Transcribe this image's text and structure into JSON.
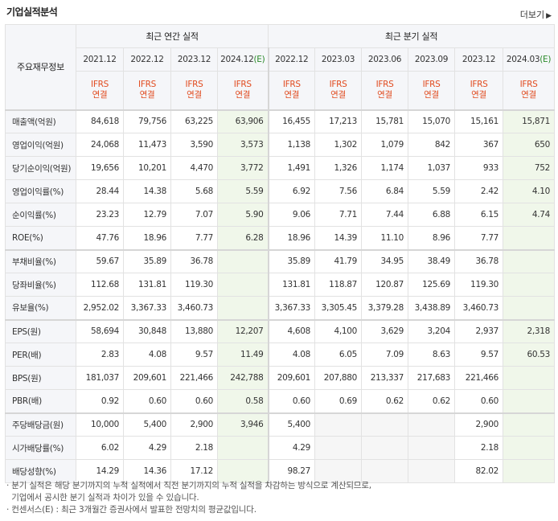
{
  "header": {
    "title": "기업실적분석",
    "more_label": "더보기",
    "more_arrow": "▶"
  },
  "table": {
    "corner_label": "주요재무정보",
    "annual_group": "최근 연간 실적",
    "quarter_group": "최근 분기 실적",
    "annual_periods": [
      "2021.12",
      "2022.12",
      "2023.12",
      "2024.12"
    ],
    "annual_est_suffix": "(E)",
    "quarter_periods": [
      "2022.12",
      "2023.03",
      "2023.06",
      "2023.09",
      "2023.12",
      "2024.03"
    ],
    "quarter_est_suffix": "(E)",
    "ifrs_top": "IFRS",
    "ifrs_bottom": "연결",
    "rows": [
      {
        "label": "매출액(억원)",
        "values": [
          "84,618",
          "79,756",
          "63,225",
          "63,906",
          "16,455",
          "17,213",
          "15,781",
          "15,070",
          "15,161",
          "15,871"
        ]
      },
      {
        "label": "영업이익(억원)",
        "values": [
          "24,068",
          "11,473",
          "3,590",
          "3,573",
          "1,138",
          "1,302",
          "1,079",
          "842",
          "367",
          "650"
        ]
      },
      {
        "label": "당기순이익(억원)",
        "values": [
          "19,656",
          "10,201",
          "4,470",
          "3,772",
          "1,491",
          "1,326",
          "1,174",
          "1,037",
          "933",
          "752"
        ]
      },
      {
        "label": "영업이익률(%)",
        "values": [
          "28.44",
          "14.38",
          "5.68",
          "5.59",
          "6.92",
          "7.56",
          "6.84",
          "5.59",
          "2.42",
          "4.10"
        ]
      },
      {
        "label": "순이익률(%)",
        "values": [
          "23.23",
          "12.79",
          "7.07",
          "5.90",
          "9.06",
          "7.71",
          "7.44",
          "6.88",
          "6.15",
          "4.74"
        ]
      },
      {
        "label": "ROE(%)",
        "values": [
          "47.76",
          "18.96",
          "7.77",
          "6.28",
          "18.96",
          "14.39",
          "11.10",
          "8.96",
          "7.77",
          ""
        ]
      },
      {
        "label": "부채비율(%)",
        "values": [
          "59.67",
          "35.89",
          "36.78",
          "",
          "35.89",
          "41.79",
          "34.95",
          "38.49",
          "36.78",
          ""
        ]
      },
      {
        "label": "당좌비율(%)",
        "values": [
          "112.68",
          "131.81",
          "119.30",
          "",
          "131.81",
          "118.87",
          "120.87",
          "125.69",
          "119.30",
          ""
        ]
      },
      {
        "label": "유보율(%)",
        "values": [
          "2,952.02",
          "3,367.33",
          "3,460.73",
          "",
          "3,367.33",
          "3,305.45",
          "3,379.28",
          "3,438.89",
          "3,460.73",
          ""
        ]
      },
      {
        "label": "EPS(원)",
        "values": [
          "58,694",
          "30,848",
          "13,880",
          "12,207",
          "4,608",
          "4,100",
          "3,629",
          "3,204",
          "2,937",
          "2,318"
        ]
      },
      {
        "label": "PER(배)",
        "values": [
          "2.83",
          "4.08",
          "9.57",
          "11.49",
          "4.08",
          "6.05",
          "7.09",
          "8.63",
          "9.57",
          "60.53"
        ]
      },
      {
        "label": "BPS(원)",
        "values": [
          "181,037",
          "209,601",
          "221,466",
          "242,788",
          "209,601",
          "207,880",
          "213,337",
          "217,683",
          "221,466",
          ""
        ]
      },
      {
        "label": "PBR(배)",
        "values": [
          "0.92",
          "0.60",
          "0.60",
          "0.58",
          "0.60",
          "0.69",
          "0.62",
          "0.62",
          "0.60",
          ""
        ]
      },
      {
        "label": "주당배당금(원)",
        "values": [
          "10,000",
          "5,400",
          "2,900",
          "3,946",
          "5,400",
          "",
          "",
          "",
          "2,900",
          ""
        ]
      },
      {
        "label": "시가배당률(%)",
        "values": [
          "6.02",
          "4.29",
          "2.18",
          "",
          "4.29",
          "",
          "",
          "",
          "2.18",
          ""
        ]
      },
      {
        "label": "배당성향(%)",
        "values": [
          "14.29",
          "14.36",
          "17.12",
          "",
          "98.27",
          "",
          "",
          "",
          "82.02",
          ""
        ]
      }
    ]
  },
  "notes": [
    "· 분기 실적은 해당 분기까지의 누적 실적에서 직전 분기까지의 누적 실적을 차감하는 방식으로 계산되므로,",
    "  기업에서 공시한 분기 실적과 차이가 있을 수 있습니다.",
    "· 컨센서스(E) : 최근 3개월간 증권사에서 발표한 전망치의 평균값입니다."
  ]
}
